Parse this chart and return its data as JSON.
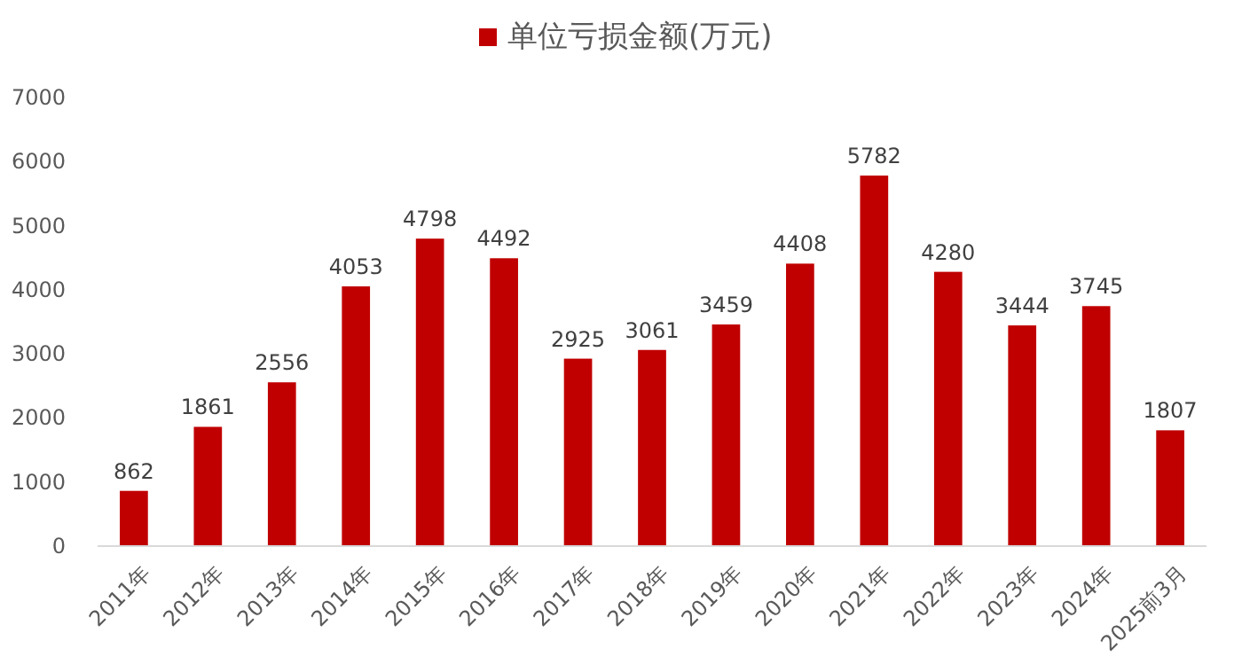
{
  "chart_data": {
    "type": "bar",
    "categories": [
      "2011年",
      "2012年",
      "2013年",
      "2014年",
      "2015年",
      "2016年",
      "2017年",
      "2018年",
      "2019年",
      "2020年",
      "2021年",
      "2022年",
      "2023年",
      "2024年",
      "2025前3月"
    ],
    "series": [
      {
        "name": "单位亏损金额(万元)",
        "color": "#c00000",
        "values": [
          862,
          1861,
          2556,
          4053,
          4798,
          4492,
          2925,
          3061,
          3459,
          4408,
          5782,
          4280,
          3444,
          3745,
          1807
        ]
      }
    ],
    "ylim": [
      0,
      7000
    ],
    "yticks": [
      0,
      1000,
      2000,
      3000,
      4000,
      5000,
      6000,
      7000
    ],
    "data_labels": true,
    "legend": "top",
    "grid": false
  }
}
